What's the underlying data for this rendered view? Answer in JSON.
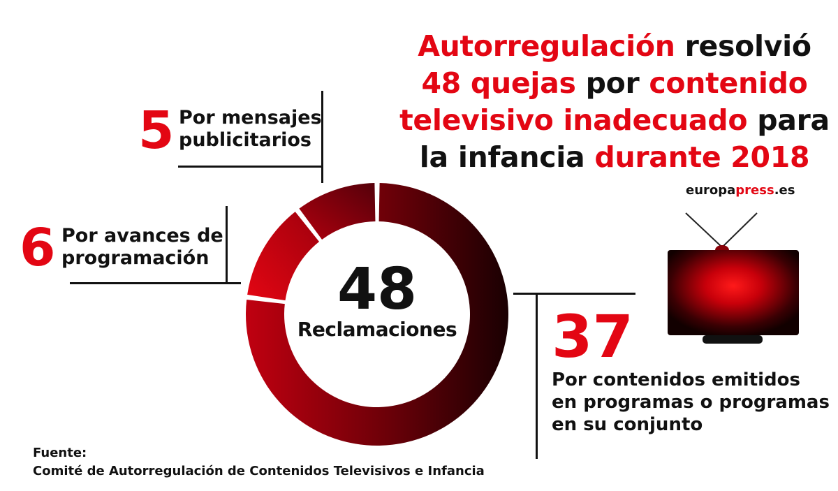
{
  "title": {
    "parts": [
      {
        "text": "Autorregulación",
        "color": "red"
      },
      {
        "text": " resolvió",
        "color": "black"
      },
      {
        "br": true
      },
      {
        "text": "48 quejas",
        "color": "red"
      },
      {
        "text": " por ",
        "color": "black"
      },
      {
        "text": "contenido",
        "color": "red"
      },
      {
        "br": true
      },
      {
        "text": "televisivo inadecuado",
        "color": "red"
      },
      {
        "text": " para",
        "color": "black"
      },
      {
        "br": true
      },
      {
        "text": "la infancia ",
        "color": "black"
      },
      {
        "text": "durante 2018",
        "color": "red"
      }
    ]
  },
  "center": {
    "number": "48",
    "label": "Reclamaciones"
  },
  "callouts": {
    "publicidad": {
      "value": "5",
      "label_line1": "Por mensajes",
      "label_line2": "publicitarios"
    },
    "avances": {
      "value": "6",
      "label_line1": "Por avances de",
      "label_line2": "programación"
    },
    "contenidos": {
      "value": "37",
      "label_line1": "Por contenidos emitidos",
      "label_line2": "en programas o programas",
      "label_line3": "en su conjunto"
    }
  },
  "brand": {
    "part1": "europa",
    "part2": "press",
    "part3": ".es"
  },
  "source": {
    "heading": "Fuente:",
    "text": "Comité de Autorregulación de Contenidos Televisivos e Infancia"
  },
  "colors": {
    "accent": "#e30613",
    "dark": "#2a0000",
    "text": "#111111"
  },
  "chart_data": {
    "type": "pie",
    "variant": "donut",
    "total": 48,
    "categories": [
      "Por contenidos emitidos en programas o programas en su conjunto",
      "Por avances de programación",
      "Por mensajes publicitarios"
    ],
    "values": [
      37,
      6,
      5
    ],
    "title": "Autorregulación resolvió 48 quejas por contenido televisivo inadecuado para la infancia durante 2018"
  }
}
